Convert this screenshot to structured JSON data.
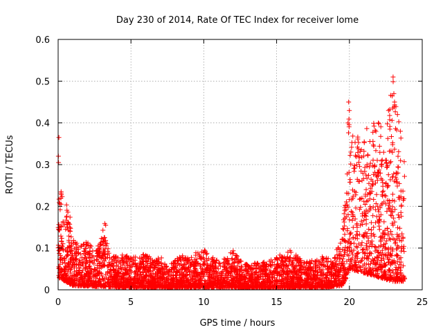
{
  "chart_data": {
    "type": "scatter",
    "title": "Day 230 of 2014, Rate Of TEC Index for receiver lome",
    "xlabel": "GPS time / hours",
    "ylabel": "ROTI / TECUs",
    "xlim": [
      0,
      25
    ],
    "ylim": [
      0,
      0.6
    ],
    "xticks": [
      0,
      5,
      10,
      15,
      20,
      25
    ],
    "yticks": [
      0,
      0.1,
      0.2,
      0.3,
      0.4,
      0.5,
      0.6
    ],
    "grid": true,
    "marker": "+",
    "color": "#ff0000",
    "envelope": [
      [
        0.0,
        0.365
      ],
      [
        0.1,
        0.27
      ],
      [
        0.3,
        0.25
      ],
      [
        0.5,
        0.22
      ],
      [
        0.8,
        0.18
      ],
      [
        1.0,
        0.12
      ],
      [
        1.5,
        0.11
      ],
      [
        2.0,
        0.12
      ],
      [
        2.5,
        0.1
      ],
      [
        3.0,
        0.13
      ],
      [
        3.2,
        0.175
      ],
      [
        3.5,
        0.09
      ],
      [
        4.0,
        0.08
      ],
      [
        4.5,
        0.085
      ],
      [
        5.0,
        0.08
      ],
      [
        5.5,
        0.08
      ],
      [
        6.0,
        0.09
      ],
      [
        6.5,
        0.07
      ],
      [
        7.0,
        0.08
      ],
      [
        7.5,
        0.06
      ],
      [
        8.0,
        0.07
      ],
      [
        8.5,
        0.085
      ],
      [
        9.0,
        0.08
      ],
      [
        9.5,
        0.09
      ],
      [
        10.0,
        0.1
      ],
      [
        10.5,
        0.08
      ],
      [
        11.0,
        0.07
      ],
      [
        11.5,
        0.08
      ],
      [
        12.0,
        0.095
      ],
      [
        12.5,
        0.07
      ],
      [
        13.0,
        0.06
      ],
      [
        13.5,
        0.065
      ],
      [
        14.0,
        0.07
      ],
      [
        14.5,
        0.07
      ],
      [
        15.0,
        0.08
      ],
      [
        15.5,
        0.09
      ],
      [
        16.0,
        0.095
      ],
      [
        16.5,
        0.08
      ],
      [
        17.0,
        0.07
      ],
      [
        17.5,
        0.07
      ],
      [
        18.0,
        0.08
      ],
      [
        18.5,
        0.08
      ],
      [
        19.0,
        0.085
      ],
      [
        19.5,
        0.13
      ],
      [
        19.8,
        0.25
      ],
      [
        20.0,
        0.45
      ],
      [
        20.3,
        0.35
      ],
      [
        20.6,
        0.37
      ],
      [
        21.0,
        0.38
      ],
      [
        21.5,
        0.4
      ],
      [
        22.0,
        0.41
      ],
      [
        22.5,
        0.4
      ],
      [
        23.0,
        0.51
      ],
      [
        23.3,
        0.42
      ],
      [
        23.6,
        0.38
      ],
      [
        23.8,
        0.3
      ]
    ],
    "floor": [
      [
        0.0,
        0.03
      ],
      [
        0.5,
        0.02
      ],
      [
        1.0,
        0.01
      ],
      [
        5.0,
        0.005
      ],
      [
        18.0,
        0.005
      ],
      [
        19.5,
        0.01
      ],
      [
        19.8,
        0.03
      ],
      [
        20.0,
        0.05
      ],
      [
        21.0,
        0.04
      ],
      [
        22.0,
        0.03
      ],
      [
        23.0,
        0.02
      ],
      [
        23.8,
        0.02
      ]
    ],
    "highlight_points": [
      [
        0.05,
        0.365
      ],
      [
        0.02,
        0.32
      ],
      [
        0.03,
        0.305
      ],
      [
        19.95,
        0.45
      ],
      [
        23.0,
        0.51
      ],
      [
        23.05,
        0.47
      ],
      [
        23.1,
        0.45
      ],
      [
        19.9,
        0.4
      ],
      [
        20.1,
        0.33
      ],
      [
        23.3,
        0.42
      ],
      [
        23.5,
        0.38
      ]
    ],
    "generated_point_count": 4200
  }
}
